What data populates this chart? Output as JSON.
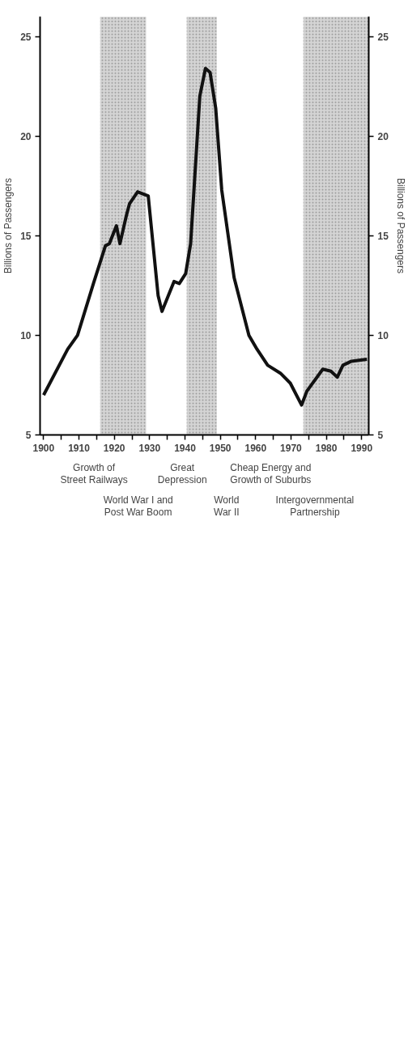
{
  "chart_data": {
    "type": "line",
    "xlabel": null,
    "ylabel": "Billions of Passengers",
    "y2label": "Billions of Passengers",
    "x": [
      1900,
      1906.8,
      1909.6,
      1914.1,
      1917.5,
      1918.6,
      1920.6,
      1921.6,
      1923.4,
      1924.3,
      1926.6,
      1929.6,
      1932.4,
      1933.5,
      1935.3,
      1936.9,
      1938.4,
      1940.2,
      1941.6,
      1944.2,
      1945.8,
      1947.1,
      1948.7,
      1950.4,
      1953.9,
      1958.1,
      1960.4,
      1963.4,
      1967,
      1969.8,
      1973,
      1974.5,
      1979,
      1981.3,
      1983.1,
      1984.7,
      1987.1,
      1991.5
    ],
    "series": [
      {
        "color": "#111111",
        "values": [
          7.0,
          9.3,
          10.0,
          12.6,
          14.5,
          14.6,
          15.5,
          14.6,
          16.0,
          16.6,
          17.2,
          17.0,
          12.0,
          11.2,
          12.0,
          12.7,
          12.6,
          13.1,
          14.6,
          22.0,
          23.4,
          23.2,
          21.4,
          17.3,
          12.9,
          10.0,
          9.3,
          8.5,
          8.1,
          7.6,
          6.5,
          7.2,
          8.3,
          8.2,
          7.9,
          8.5,
          8.7,
          8.8
        ]
      }
    ],
    "xlim": [
      1899,
      1992
    ],
    "xticks": [
      1900,
      {
        "value": 1905,
        "label": null
      },
      1910,
      {
        "value": 1915,
        "label": null
      },
      1920,
      {
        "value": 1925,
        "label": null
      },
      1930,
      {
        "value": 1935,
        "label": null
      },
      1940,
      {
        "value": 1945,
        "label": null
      },
      1950,
      {
        "value": 1955,
        "label": null
      },
      1960,
      {
        "value": 1965,
        "label": null
      },
      1970,
      {
        "value": 1975,
        "label": null
      },
      1980,
      {
        "value": 1985,
        "label": null
      },
      1990
    ],
    "ylim": [
      5,
      26
    ],
    "yticks": [
      5,
      10,
      15,
      20,
      25
    ],
    "y2lim": [
      5,
      26
    ],
    "y2ticks": [
      5,
      10,
      15,
      20,
      25
    ],
    "bands": [
      {
        "axis": "x",
        "from": 1916,
        "to": 1929,
        "color": "#d4d4d4"
      },
      {
        "axis": "x",
        "from": 1940.5,
        "to": 1949,
        "color": "#d4d4d4"
      },
      {
        "axis": "x",
        "from": 1973.5,
        "to": 1992,
        "color": "#d4d4d4"
      }
    ],
    "annotations": [
      "Growth of\nStreet Railways",
      "World War I and\nPost War Boom",
      "Great\nDepression",
      "World\nWar II",
      "Cheap Energy and\nGrowth of Suburbs",
      "Intergovernmental\nPartnership"
    ],
    "grid": false,
    "line_style": "solid",
    "marker": "none"
  }
}
